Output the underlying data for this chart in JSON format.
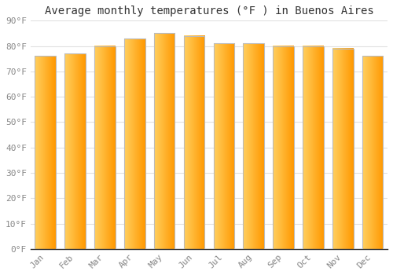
{
  "months": [
    "Jan",
    "Feb",
    "Mar",
    "Apr",
    "May",
    "Jun",
    "Jul",
    "Aug",
    "Sep",
    "Oct",
    "Nov",
    "Dec"
  ],
  "temperatures": [
    76,
    77,
    80,
    83,
    85,
    84,
    81,
    81,
    80,
    80,
    79,
    76
  ],
  "bar_color_left": "#FFD060",
  "bar_color_center": "#FFC030",
  "bar_color_right": "#FF9800",
  "bar_border_color": "#BBBBBB",
  "title": "Average monthly temperatures (°F ) in Buenos Aires",
  "ylabel_ticks": [
    "0°F",
    "10°F",
    "20°F",
    "30°F",
    "40°F",
    "50°F",
    "60°F",
    "70°F",
    "80°F",
    "90°F"
  ],
  "ytick_values": [
    0,
    10,
    20,
    30,
    40,
    50,
    60,
    70,
    80,
    90
  ],
  "ylim": [
    0,
    90
  ],
  "background_color": "#ffffff",
  "plot_bg_color": "#ffffff",
  "grid_color": "#e0e0e0",
  "title_fontsize": 10,
  "tick_fontsize": 8,
  "tick_color": "#888888",
  "title_color": "#333333"
}
